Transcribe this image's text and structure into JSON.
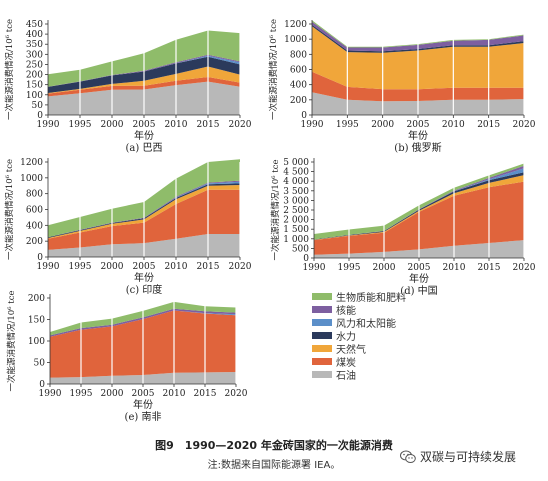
{
  "figure": {
    "title": "图9　1990—2020 年金砖国家的一次能源消费",
    "note": "注:数据来自国际能源署 IEA。",
    "watermark": "双碳与可持续发展"
  },
  "legend": [
    {
      "name": "生物质能和肥料",
      "color": "#8fbc6a"
    },
    {
      "name": "核能",
      "color": "#7d5fa0"
    },
    {
      "name": "风力和太阳能",
      "color": "#5b8fc9"
    },
    {
      "name": "水力",
      "color": "#2b3a5c"
    },
    {
      "name": "天然气",
      "color": "#f0a63a"
    },
    {
      "name": "煤炭",
      "color": "#e0643c"
    },
    {
      "name": "石油",
      "color": "#b8b8b8"
    }
  ],
  "chart_data": [
    {
      "type": "area",
      "stacked": true,
      "caption": "(a) 巴西",
      "xlabel": "年份",
      "ylabel": "一次能源消费情况/10⁶ tce",
      "x": [
        1990,
        1995,
        2000,
        2005,
        2010,
        2015,
        2020
      ],
      "yticks": [
        0,
        50,
        100,
        150,
        200,
        250,
        300,
        350,
        400,
        450
      ],
      "ylim": [
        0,
        450
      ],
      "grid": "vertical",
      "series": [
        {
          "name": "石油",
          "values": [
            92,
            108,
            125,
            126,
            148,
            165,
            140
          ]
        },
        {
          "name": "煤炭",
          "values": [
            14,
            17,
            19,
            19,
            21,
            23,
            20
          ]
        },
        {
          "name": "天然气",
          "values": [
            3,
            4,
            10,
            24,
            34,
            52,
            40
          ]
        },
        {
          "name": "水力",
          "values": [
            30,
            36,
            42,
            46,
            52,
            48,
            50
          ]
        },
        {
          "name": "风力和太阳能",
          "values": [
            0,
            0,
            0,
            0,
            1,
            5,
            10
          ]
        },
        {
          "name": "核能",
          "values": [
            1,
            1,
            2,
            4,
            5,
            5,
            5
          ]
        },
        {
          "name": "生物质能和肥料",
          "values": [
            62,
            58,
            67,
            86,
            111,
            120,
            140
          ]
        }
      ]
    },
    {
      "type": "area",
      "stacked": true,
      "caption": "(b) 俄罗斯",
      "xlabel": "年份",
      "ylabel": "一次能源消费情况/10⁶ tce",
      "x": [
        1990,
        1995,
        2000,
        2005,
        2010,
        2015,
        2020
      ],
      "yticks": [
        0,
        200,
        400,
        600,
        800,
        1000,
        1200
      ],
      "ylim": [
        0,
        1200
      ],
      "grid": "vertical",
      "series": [
        {
          "name": "石油",
          "values": [
            300,
            200,
            180,
            185,
            200,
            200,
            210
          ]
        },
        {
          "name": "煤炭",
          "values": [
            270,
            170,
            160,
            155,
            160,
            160,
            150
          ]
        },
        {
          "name": "天然气",
          "values": [
            600,
            460,
            480,
            510,
            540,
            540,
            590
          ]
        },
        {
          "name": "水力",
          "values": [
            20,
            20,
            20,
            20,
            20,
            20,
            25
          ]
        },
        {
          "name": "风力和太阳能",
          "values": [
            0,
            0,
            0,
            0,
            0,
            0,
            0
          ]
        },
        {
          "name": "核能",
          "values": [
            40,
            40,
            50,
            55,
            60,
            70,
            75
          ]
        },
        {
          "name": "生物质能和肥料",
          "values": [
            20,
            10,
            10,
            10,
            10,
            10,
            10
          ]
        }
      ]
    },
    {
      "type": "area",
      "stacked": true,
      "caption": "(c) 印度",
      "xlabel": "年份",
      "ylabel": "一次能源消费情况/10⁶ tce",
      "x": [
        1990,
        1995,
        2000,
        2005,
        2010,
        2015,
        2020
      ],
      "yticks": [
        0,
        200,
        400,
        600,
        800,
        1000,
        1200
      ],
      "ylim": [
        0,
        1200
      ],
      "grid": "vertical",
      "series": [
        {
          "name": "石油",
          "values": [
            90,
            120,
            160,
            175,
            230,
            290,
            290
          ]
        },
        {
          "name": "煤炭",
          "values": [
            140,
            190,
            230,
            260,
            440,
            560,
            560
          ]
        },
        {
          "name": "天然气",
          "values": [
            10,
            20,
            30,
            40,
            60,
            50,
            60
          ]
        },
        {
          "name": "水力",
          "values": [
            10,
            10,
            10,
            15,
            15,
            20,
            20
          ]
        },
        {
          "name": "风力和太阳能",
          "values": [
            0,
            0,
            0,
            0,
            5,
            10,
            20
          ]
        },
        {
          "name": "核能",
          "values": [
            0,
            5,
            5,
            5,
            10,
            10,
            15
          ]
        },
        {
          "name": "生物质能和肥料",
          "values": [
            150,
            160,
            175,
            200,
            230,
            260,
            270
          ]
        }
      ]
    },
    {
      "type": "area",
      "stacked": true,
      "caption": "(d) 中国",
      "xlabel": "年份",
      "ylabel": "一次能源消费情况/10⁶ tce",
      "x": [
        1990,
        1995,
        2000,
        2005,
        2010,
        2015,
        2020
      ],
      "yticks": [
        0,
        500,
        1000,
        1500,
        2000,
        2500,
        3000,
        3500,
        4000,
        4500,
        5000
      ],
      "yticklabels": [
        "0",
        "500",
        "1 000",
        "1 500",
        "2 000",
        "2 500",
        "3 000",
        "3 500",
        "4 000",
        "4 500",
        "5 000"
      ],
      "ylim": [
        0,
        5000
      ],
      "grid": "vertical",
      "series": [
        {
          "name": "石油",
          "values": [
            170,
            230,
            320,
            450,
            640,
            780,
            930
          ]
        },
        {
          "name": "煤炭",
          "values": [
            760,
            920,
            1000,
            1950,
            2600,
            2900,
            3050
          ]
        },
        {
          "name": "天然气",
          "values": [
            20,
            20,
            40,
            60,
            130,
            230,
            340
          ]
        },
        {
          "name": "水力",
          "values": [
            20,
            30,
            40,
            60,
            100,
            140,
            150
          ]
        },
        {
          "name": "风力和太阳能",
          "values": [
            0,
            0,
            0,
            0,
            10,
            50,
            200
          ]
        },
        {
          "name": "核能",
          "values": [
            0,
            5,
            10,
            20,
            30,
            70,
            130
          ]
        },
        {
          "name": "生物质能和肥料",
          "values": [
            280,
            280,
            280,
            200,
            150,
            130,
            120
          ]
        }
      ]
    },
    {
      "type": "area",
      "stacked": true,
      "caption": "(e) 南非",
      "xlabel": "年份",
      "ylabel": "一次能源消费情况/10⁶ tce",
      "x": [
        1990,
        1995,
        2000,
        2005,
        2010,
        2015,
        2020
      ],
      "yticks": [
        0,
        50,
        100,
        150,
        200
      ],
      "ylim": [
        0,
        200
      ],
      "grid": "vertical",
      "series": [
        {
          "name": "石油",
          "values": [
            15,
            16,
            19,
            21,
            26,
            27,
            28
          ]
        },
        {
          "name": "煤炭",
          "values": [
            95,
            110,
            115,
            130,
            145,
            137,
            132
          ]
        },
        {
          "name": "天然气",
          "values": [
            0,
            0,
            0,
            0,
            0,
            0,
            0
          ]
        },
        {
          "name": "水力",
          "values": [
            0,
            0,
            0,
            0,
            0,
            0,
            0
          ]
        },
        {
          "name": "风力和太阳能",
          "values": [
            0,
            0,
            0,
            0,
            0,
            1,
            2
          ]
        },
        {
          "name": "核能",
          "values": [
            3,
            4,
            4,
            4,
            4,
            4,
            4
          ]
        },
        {
          "name": "生物质能和肥料",
          "values": [
            8,
            13,
            14,
            15,
            16,
            12,
            12
          ]
        }
      ]
    }
  ]
}
